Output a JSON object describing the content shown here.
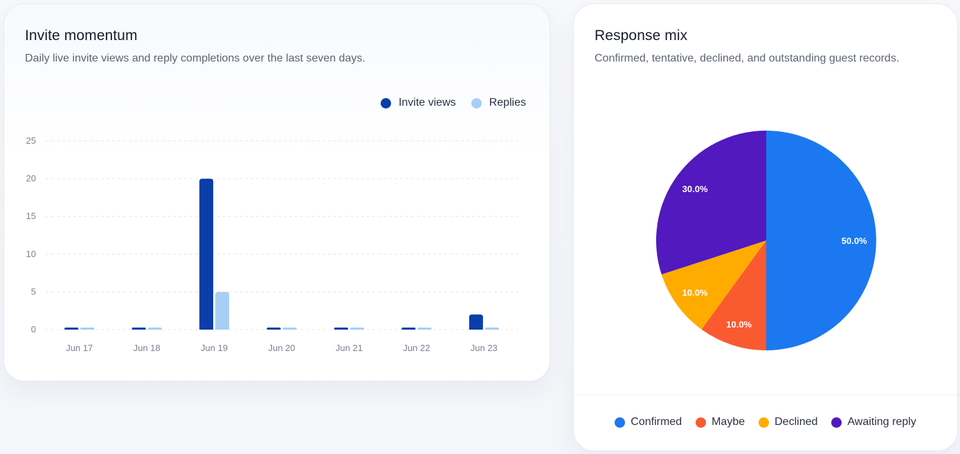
{
  "left_card": {
    "title": "Invite momentum",
    "subtitle": "Daily live invite views and reply completions over the last seven days."
  },
  "right_card": {
    "title": "Response mix",
    "subtitle": "Confirmed, tentative, declined, and outstanding guest records."
  },
  "chart_data": [
    {
      "type": "bar",
      "title": "Invite momentum",
      "categories": [
        "Jun 17",
        "Jun 18",
        "Jun 19",
        "Jun 20",
        "Jun 21",
        "Jun 22",
        "Jun 23"
      ],
      "series": [
        {
          "name": "Invite views",
          "color": "#0b3ea8",
          "values": [
            0,
            0,
            20,
            0,
            0,
            0,
            2
          ]
        },
        {
          "name": "Replies",
          "color": "#a7cff5",
          "values": [
            0,
            0,
            5,
            0,
            0,
            0,
            0
          ]
        }
      ],
      "ylim": [
        0,
        25
      ],
      "yticks": [
        0,
        5,
        10,
        15,
        20,
        25
      ],
      "grid": true,
      "legend_position": "top-right"
    },
    {
      "type": "pie",
      "title": "Response mix",
      "slices": [
        {
          "name": "Confirmed",
          "value": 50.0,
          "label": "50.0%",
          "color": "#1b78f0"
        },
        {
          "name": "Maybe",
          "value": 10.0,
          "label": "10.0%",
          "color": "#fa5a30"
        },
        {
          "name": "Declined",
          "value": 10.0,
          "label": "10.0%",
          "color": "#ffab00"
        },
        {
          "name": "Awaiting reply",
          "value": 30.0,
          "label": "30.0%",
          "color": "#5119be"
        }
      ],
      "legend_position": "bottom"
    }
  ]
}
